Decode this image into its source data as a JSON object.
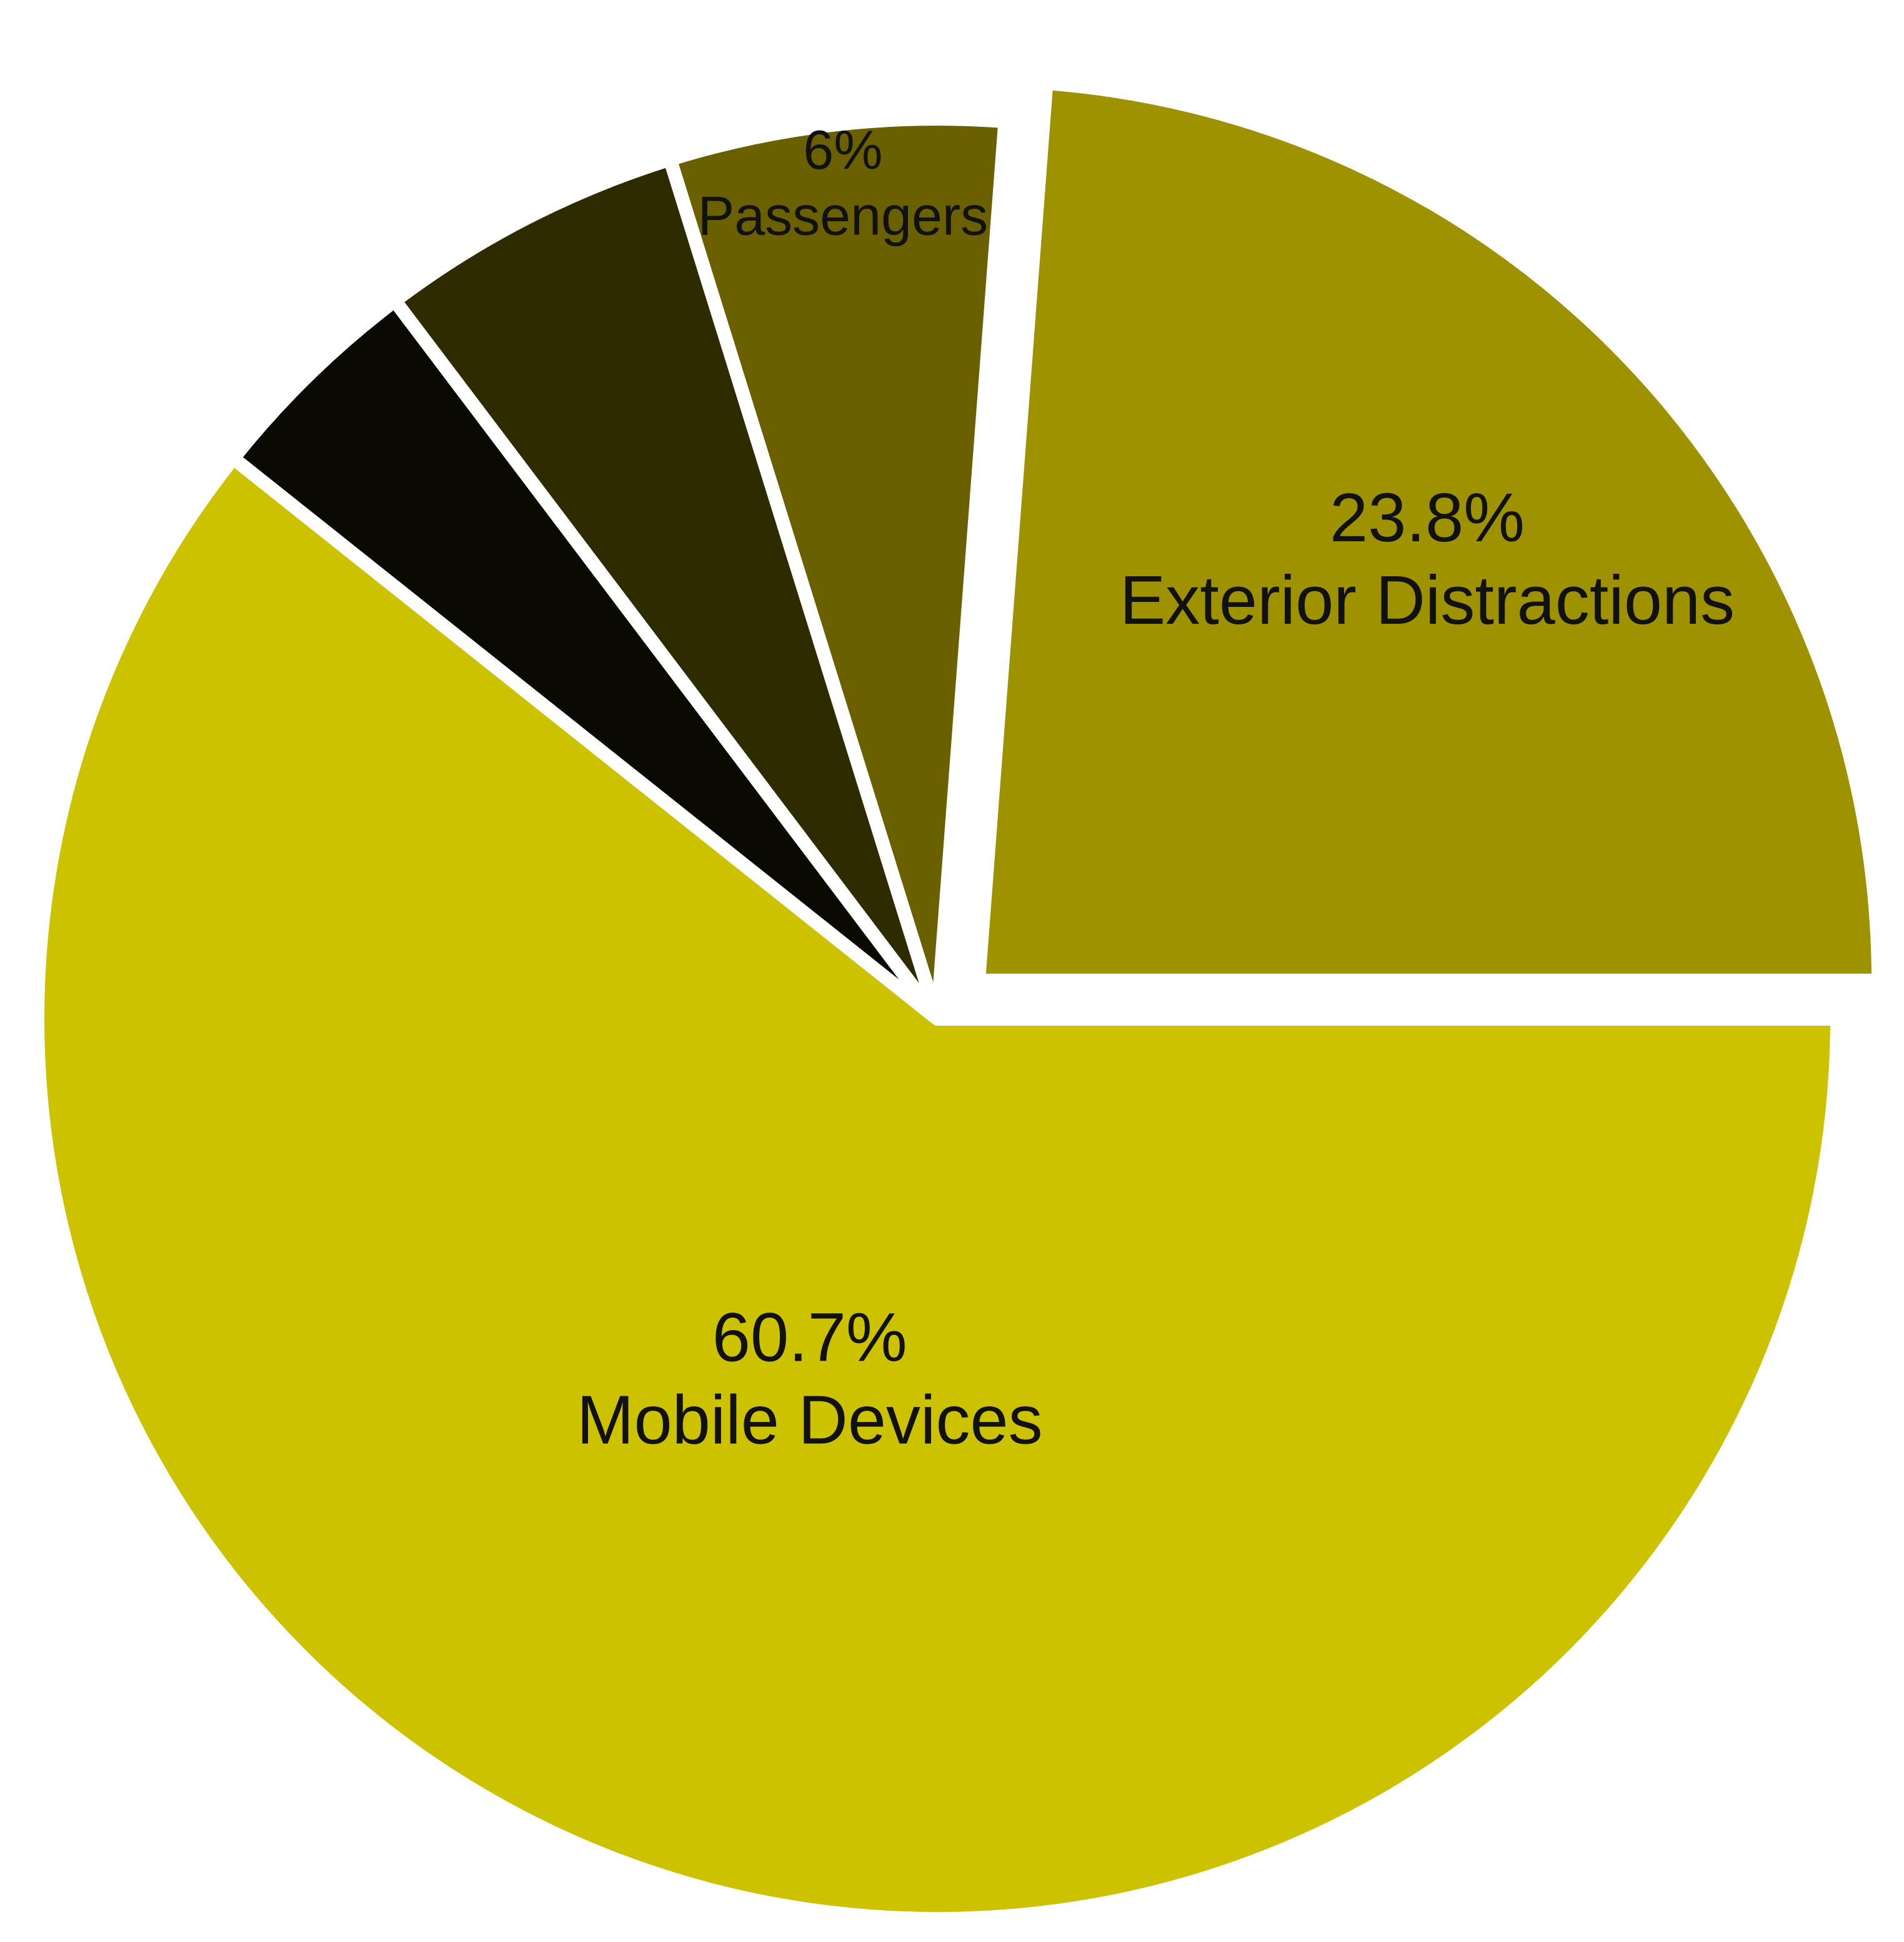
{
  "chart_data": {
    "type": "pie",
    "categories": [
      "Exterior Distractions",
      "Passengers",
      null,
      null,
      "Mobile Devices"
    ],
    "values": [
      23.8,
      6,
      5.5,
      4,
      60.7
    ],
    "value_labels": [
      "23.8%",
      "6%",
      null,
      null,
      "60.7%"
    ],
    "colors": [
      "#9e9200",
      "#6b6000",
      "#2f2b00",
      "#0a0a03",
      "#ccc200"
    ]
  }
}
